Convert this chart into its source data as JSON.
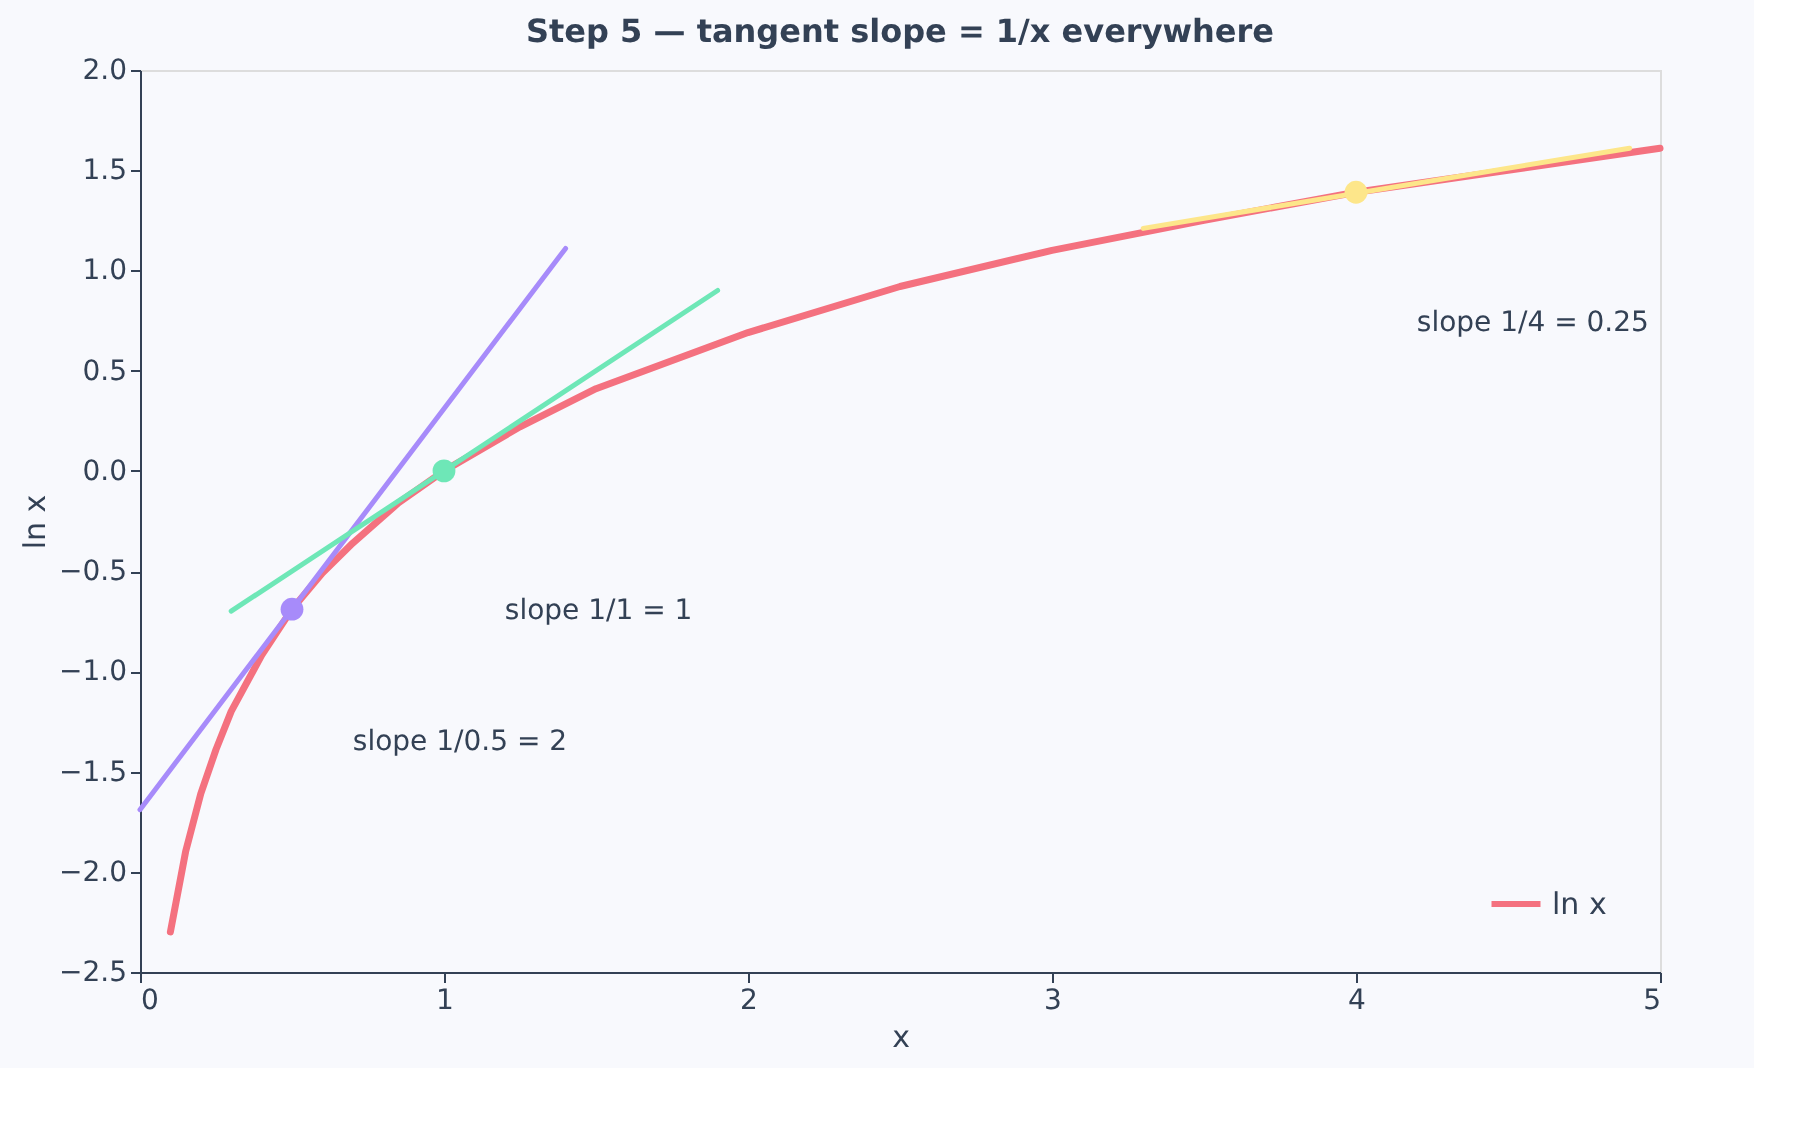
{
  "chart_data": {
    "type": "line",
    "title": "Step 5 — tangent slope = 1/x everywhere",
    "xlabel": "x",
    "ylabel": "ln x",
    "xlim": [
      0,
      5
    ],
    "xticks": [
      0,
      1,
      2,
      3,
      4,
      5
    ],
    "ylim": [
      -2.5,
      2
    ],
    "yticks": [
      {
        "value": -2.5,
        "label": "−2.5"
      },
      {
        "value": -2,
        "label": "−2.0"
      },
      {
        "value": -1.5,
        "label": "−1.5"
      },
      {
        "value": -1,
        "label": "−1.0"
      },
      {
        "value": -0.5,
        "label": "−0.5"
      },
      {
        "value": 0,
        "label": "0.0"
      },
      {
        "value": 0.5,
        "label": "0.5"
      },
      {
        "value": 1,
        "label": "1.0"
      },
      {
        "value": 1.5,
        "label": "1.5"
      },
      {
        "value": 2,
        "label": "2.0"
      }
    ],
    "grid": false,
    "legend": "bottom right",
    "line_style": "solid",
    "series": [
      {
        "name": "ln x",
        "color": "#f4717f",
        "x": [
          0.1,
          0.15,
          0.2,
          0.25,
          0.3,
          0.4,
          0.5,
          0.6,
          0.7,
          0.85,
          1,
          1.25,
          1.5,
          2,
          2.5,
          3,
          3.5,
          4,
          4.5,
          5
        ],
        "values": [
          -2.3,
          -1.9,
          -1.61,
          -1.39,
          -1.2,
          -0.92,
          -0.69,
          -0.51,
          -0.36,
          -0.16,
          0,
          0.22,
          0.41,
          0.69,
          0.92,
          1.1,
          1.25,
          1.39,
          1.5,
          1.61
        ]
      },
      {
        "color": "#a78bfa",
        "x": [
          0,
          1.4
        ],
        "values": [
          -1.69,
          1.11
        ]
      },
      {
        "color": "#6ee7b7",
        "x": [
          0.3,
          1.9
        ],
        "values": [
          -0.7,
          0.9
        ]
      },
      {
        "color": "#fde68a",
        "x": [
          3.3,
          4.9
        ],
        "values": [
          1.21,
          1.61
        ]
      },
      {
        "type": "scatter",
        "marker": "circle",
        "color": "#a78bfa",
        "x": [
          0.5
        ],
        "values": [
          -0.69
        ]
      },
      {
        "type": "scatter",
        "marker": "circle",
        "color": "#6ee7b7",
        "x": [
          1
        ],
        "values": [
          0
        ]
      },
      {
        "type": "scatter",
        "marker": "circle",
        "color": "#fde68a",
        "x": [
          4
        ],
        "values": [
          1.39
        ]
      }
    ],
    "annotations": [
      "slope 1/0.5 = 2",
      "slope 1/1 = 1",
      "slope 1/4 = 0.25"
    ]
  }
}
